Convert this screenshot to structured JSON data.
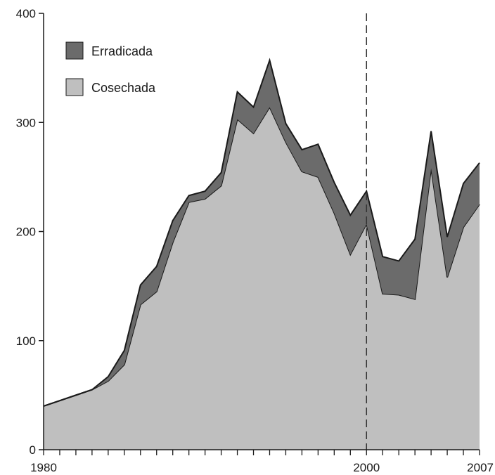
{
  "chart_data": {
    "type": "area",
    "stacked": true,
    "x": [
      1980,
      1981,
      1982,
      1983,
      1984,
      1985,
      1986,
      1987,
      1988,
      1989,
      1990,
      1991,
      1992,
      1993,
      1994,
      1995,
      1996,
      1997,
      1998,
      1999,
      2000,
      2001,
      2002,
      2003,
      2004,
      2005,
      2006,
      2007
    ],
    "series": [
      {
        "name": "Cosechada",
        "color": "#bfbfbf",
        "values": [
          40,
          45,
          50,
          55,
          63,
          78,
          133,
          145,
          190,
          227,
          230,
          242,
          303,
          290,
          314,
          282,
          255,
          250,
          217,
          179,
          207,
          143,
          142,
          138,
          258,
          158,
          204,
          225
        ]
      },
      {
        "name": "Erradicada",
        "color": "#6b6b6b",
        "values": [
          0,
          0,
          0,
          0,
          4,
          13,
          18,
          23,
          20,
          6,
          7,
          12,
          25,
          24,
          43,
          17,
          20,
          30,
          28,
          36,
          30,
          34,
          31,
          55,
          34,
          37,
          40,
          38
        ]
      }
    ],
    "ylim": [
      0,
      400
    ],
    "y_ticks": [
      "0",
      "100",
      "200",
      "300",
      "400"
    ],
    "x_tick_labels": [
      "1980",
      "2000",
      "2007"
    ],
    "reference_line": {
      "x": 2000,
      "style": "dashed"
    },
    "legend": {
      "position": "top-left"
    },
    "grid": false,
    "title": "",
    "xlabel": "",
    "ylabel": ""
  }
}
